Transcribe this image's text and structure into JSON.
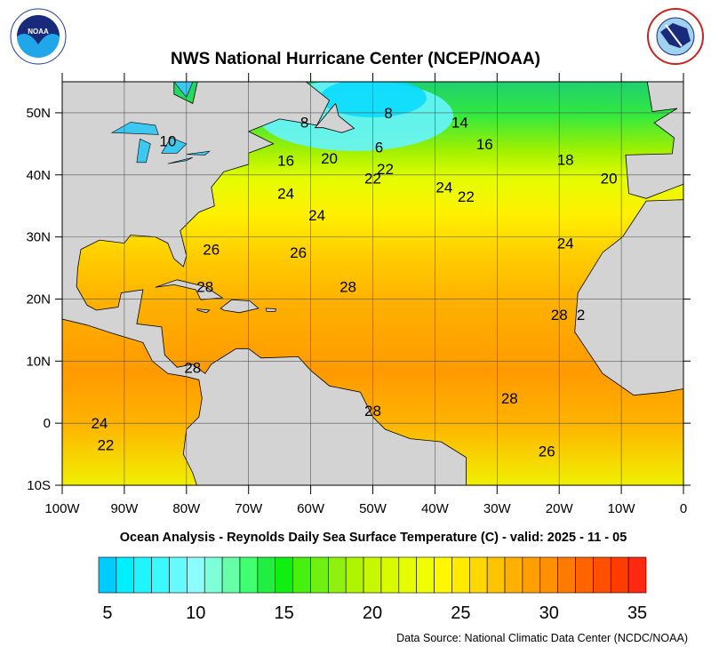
{
  "header": {
    "title": "NWS National Hurricane Center (NCEP/NOAA)",
    "left_logo": {
      "name": "noaa-logo",
      "text": "NOAA"
    },
    "right_logo": {
      "name": "nws-logo",
      "text": "NATIONAL WEATHER SERVICE"
    }
  },
  "map": {
    "lon_range": [
      -100,
      0
    ],
    "lat_range": [
      -10,
      55
    ],
    "lon_labels": [
      "100W",
      "90W",
      "80W",
      "70W",
      "60W",
      "50W",
      "40W",
      "30W",
      "20W",
      "10W",
      "0"
    ],
    "lat_labels": [
      "50N",
      "40N",
      "30N",
      "20N",
      "10N",
      "0",
      "10S"
    ],
    "grid": true,
    "land_color": "#d3d3d3",
    "contour_labels": [
      "8",
      "8",
      "10",
      "14",
      "16",
      "16",
      "18",
      "20",
      "20",
      "6",
      "22",
      "22",
      "24",
      "24",
      "24",
      "26",
      "26",
      "28",
      "28",
      "28",
      "28",
      "28",
      "24",
      "22",
      "26",
      "2",
      "28",
      "24",
      "22"
    ]
  },
  "subtitle": "Ocean Analysis - Reynolds Daily Sea Surface Temperature (C) - valid: 2025 - 11 - 05",
  "colorbar": {
    "min": 5,
    "max": 36,
    "tick_labels": [
      "5",
      "10",
      "15",
      "20",
      "25",
      "30",
      "35"
    ],
    "colors": [
      "#00ccff",
      "#00f0ff",
      "#1ef5ff",
      "#3cf8ff",
      "#66faff",
      "#8cfcff",
      "#7dffd8",
      "#66ffa8",
      "#40ff70",
      "#20ee40",
      "#10f010",
      "#48f010",
      "#70f010",
      "#90f010",
      "#b0f400",
      "#c8f800",
      "#d8fb00",
      "#e4fd00",
      "#f0ff00",
      "#fff800",
      "#ffea00",
      "#ffd800",
      "#ffc400",
      "#ffb000",
      "#ffa000",
      "#ff9000",
      "#ff7a00",
      "#ff6400",
      "#ff5000",
      "#ff3c00",
      "#ff2810"
    ]
  },
  "footer": {
    "source": "Data Source: National Climatic Data Center (NCDC/NOAA)"
  }
}
